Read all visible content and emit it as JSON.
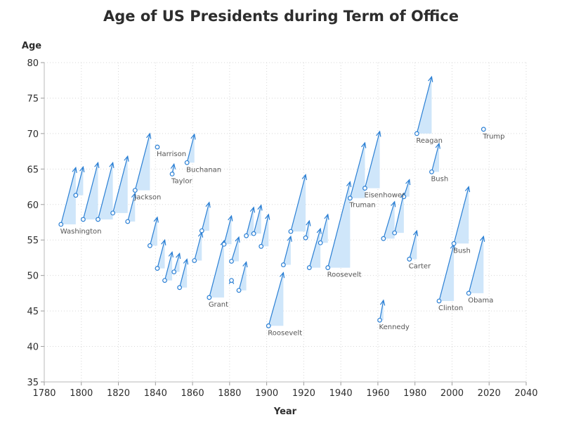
{
  "chart_data": {
    "type": "scatter",
    "title": "Age of US Presidents during Term of Office",
    "xlabel": "Year",
    "ylabel": "Age",
    "xlim": [
      1780,
      2040
    ],
    "ylim": [
      35,
      80
    ],
    "xticks": [
      1780,
      1800,
      1820,
      1840,
      1860,
      1880,
      1900,
      1920,
      1940,
      1960,
      1980,
      2000,
      2020,
      2040
    ],
    "yticks": [
      35,
      40,
      45,
      50,
      55,
      60,
      65,
      70,
      75,
      80
    ],
    "grid": true,
    "colors": {
      "arrow": "#2a7fd4",
      "fill": "#cfe6fa",
      "marker": "#2a7fd4"
    },
    "terms": [
      {
        "label": "Washington",
        "start": 1789,
        "age_start": 57.2,
        "end": 1797,
        "age_end": 65.2
      },
      {
        "label": "",
        "start": 1797,
        "age_start": 61.3,
        "end": 1801,
        "age_end": 65.3
      },
      {
        "label": "",
        "start": 1801,
        "age_start": 57.9,
        "end": 1809,
        "age_end": 65.9
      },
      {
        "label": "",
        "start": 1809,
        "age_start": 57.9,
        "end": 1817,
        "age_end": 65.9
      },
      {
        "label": "",
        "start": 1817,
        "age_start": 58.8,
        "end": 1825,
        "age_end": 66.8
      },
      {
        "label": "",
        "start": 1825,
        "age_start": 57.6,
        "end": 1829,
        "age_end": 61.6
      },
      {
        "label": "Jackson",
        "start": 1829,
        "age_start": 62.0,
        "end": 1837,
        "age_end": 70.0
      },
      {
        "label": "",
        "start": 1837,
        "age_start": 54.2,
        "end": 1841,
        "age_end": 58.2
      },
      {
        "label": "Harrison",
        "start": 1841,
        "age_start": 68.1,
        "end": 1841,
        "age_end": 68.1
      },
      {
        "label": "",
        "start": 1841,
        "age_start": 51.0,
        "end": 1845,
        "age_end": 55.0
      },
      {
        "label": "",
        "start": 1845,
        "age_start": 49.3,
        "end": 1849,
        "age_end": 53.3
      },
      {
        "label": "Taylor",
        "start": 1849,
        "age_start": 64.3,
        "end": 1850,
        "age_end": 65.7
      },
      {
        "label": "",
        "start": 1850,
        "age_start": 50.5,
        "end": 1853,
        "age_end": 53.1
      },
      {
        "label": "",
        "start": 1853,
        "age_start": 48.3,
        "end": 1857,
        "age_end": 52.3
      },
      {
        "label": "Buchanan",
        "start": 1857,
        "age_start": 65.9,
        "end": 1861,
        "age_end": 69.9
      },
      {
        "label": "",
        "start": 1861,
        "age_start": 52.1,
        "end": 1865,
        "age_end": 56.1
      },
      {
        "label": "",
        "start": 1865,
        "age_start": 56.3,
        "end": 1869,
        "age_end": 60.3
      },
      {
        "label": "Grant",
        "start": 1869,
        "age_start": 46.9,
        "end": 1877,
        "age_end": 54.9
      },
      {
        "label": "",
        "start": 1877,
        "age_start": 54.4,
        "end": 1881,
        "age_end": 58.4
      },
      {
        "label": "",
        "start": 1881,
        "age_start": 49.3,
        "end": 1881,
        "age_end": 49.5
      },
      {
        "label": "",
        "start": 1881,
        "age_start": 52.0,
        "end": 1885,
        "age_end": 55.4
      },
      {
        "label": "",
        "start": 1885,
        "age_start": 47.9,
        "end": 1889,
        "age_end": 51.9
      },
      {
        "label": "",
        "start": 1889,
        "age_start": 55.6,
        "end": 1893,
        "age_end": 59.6
      },
      {
        "label": "",
        "start": 1893,
        "age_start": 55.9,
        "end": 1897,
        "age_end": 59.9
      },
      {
        "label": "",
        "start": 1897,
        "age_start": 54.1,
        "end": 1901,
        "age_end": 58.6
      },
      {
        "label": "Roosevelt",
        "start": 1901,
        "age_start": 42.9,
        "end": 1909,
        "age_end": 50.4
      },
      {
        "label": "",
        "start": 1909,
        "age_start": 51.5,
        "end": 1913,
        "age_end": 55.5
      },
      {
        "label": "",
        "start": 1913,
        "age_start": 56.2,
        "end": 1921,
        "age_end": 64.2
      },
      {
        "label": "",
        "start": 1921,
        "age_start": 55.3,
        "end": 1923,
        "age_end": 57.7
      },
      {
        "label": "",
        "start": 1923,
        "age_start": 51.1,
        "end": 1929,
        "age_end": 56.6
      },
      {
        "label": "",
        "start": 1929,
        "age_start": 54.6,
        "end": 1933,
        "age_end": 58.6
      },
      {
        "label": "Roosevelt",
        "start": 1933,
        "age_start": 51.1,
        "end": 1945,
        "age_end": 63.2
      },
      {
        "label": "Truman",
        "start": 1945,
        "age_start": 60.9,
        "end": 1953,
        "age_end": 68.7
      },
      {
        "label": "Eisenhower",
        "start": 1953,
        "age_start": 62.3,
        "end": 1961,
        "age_end": 70.3
      },
      {
        "label": "Kennedy",
        "start": 1961,
        "age_start": 43.7,
        "end": 1963,
        "age_end": 46.5
      },
      {
        "label": "",
        "start": 1963,
        "age_start": 55.2,
        "end": 1969,
        "age_end": 60.4
      },
      {
        "label": "",
        "start": 1969,
        "age_start": 56.0,
        "end": 1974,
        "age_end": 61.6
      },
      {
        "label": "",
        "start": 1974,
        "age_start": 61.1,
        "end": 1977,
        "age_end": 63.5
      },
      {
        "label": "Carter",
        "start": 1977,
        "age_start": 52.3,
        "end": 1981,
        "age_end": 56.3
      },
      {
        "label": "Reagan",
        "start": 1981,
        "age_start": 70.0,
        "end": 1989,
        "age_end": 78.0
      },
      {
        "label": "Bush",
        "start": 1989,
        "age_start": 64.6,
        "end": 1993,
        "age_end": 68.6
      },
      {
        "label": "Clinton",
        "start": 1993,
        "age_start": 46.4,
        "end": 2001,
        "age_end": 54.4
      },
      {
        "label": "Bush",
        "start": 2001,
        "age_start": 54.5,
        "end": 2009,
        "age_end": 62.5
      },
      {
        "label": "Obama",
        "start": 2009,
        "age_start": 47.5,
        "end": 2017,
        "age_end": 55.5
      },
      {
        "label": "Trump",
        "start": 2017,
        "age_start": 70.6,
        "end": 2017,
        "age_end": 70.6
      }
    ]
  }
}
